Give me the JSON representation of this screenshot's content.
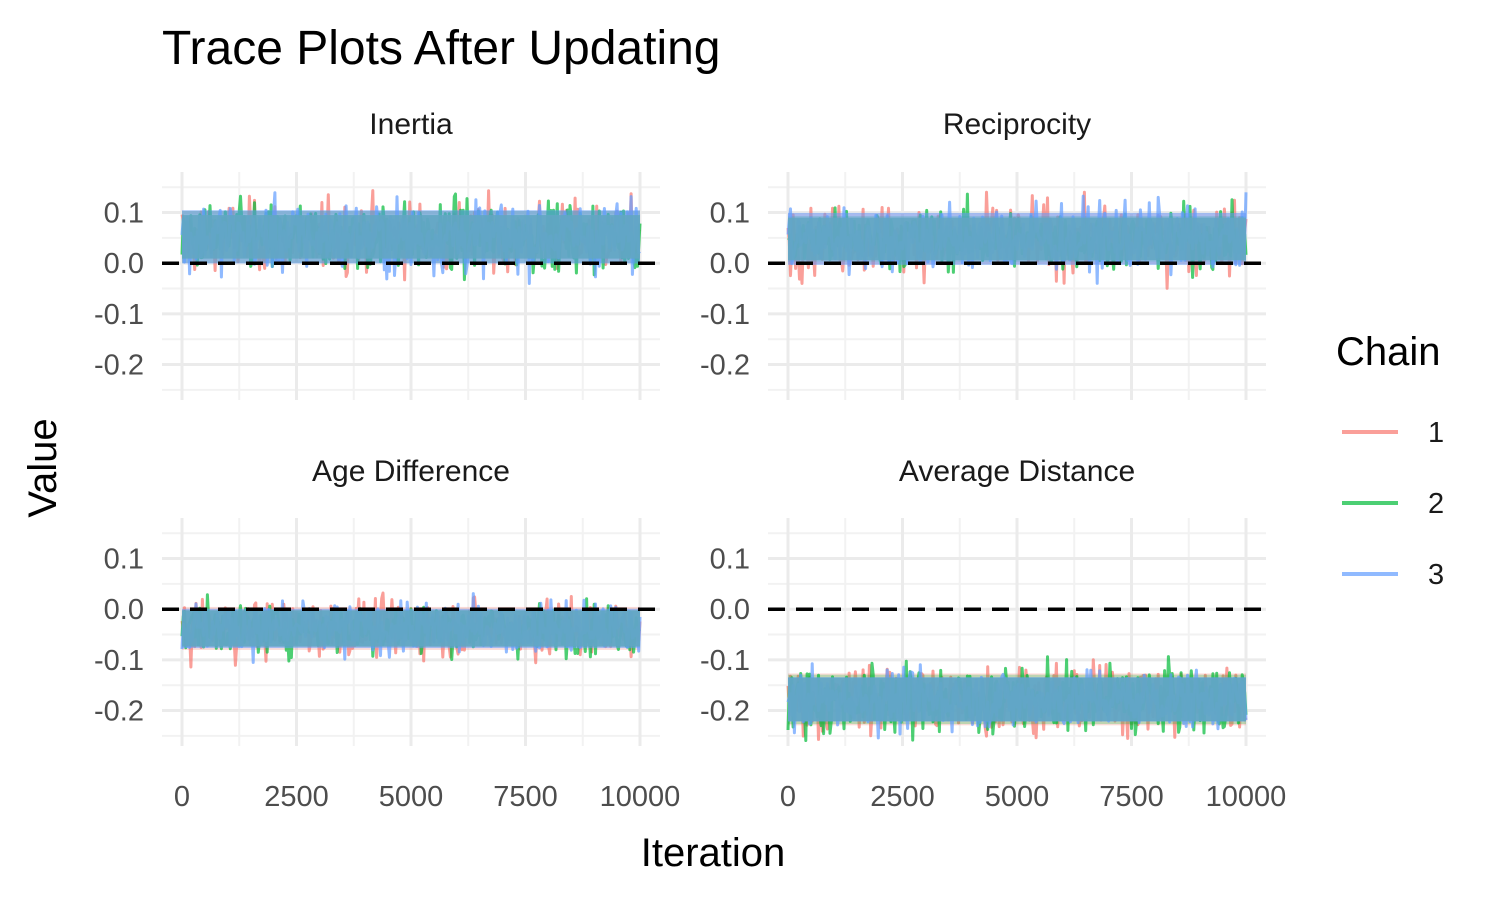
{
  "chart_data": {
    "type": "line",
    "title": "Trace Plots After Updating",
    "xlabel": "Iteration",
    "ylabel": "Value",
    "xlim": [
      0,
      10000
    ],
    "ylim": [
      -0.27,
      0.18
    ],
    "x_ticks": [
      0,
      2500,
      5000,
      7500,
      10000
    ],
    "x_tick_labels": [
      "0",
      "2500",
      "5000",
      "7500",
      "10000"
    ],
    "y_ticks": [
      0.1,
      0.0,
      -0.1,
      -0.2
    ],
    "y_tick_labels": [
      "0.1",
      "0.0",
      "-0.1",
      "-0.2"
    ],
    "reference_line": {
      "y": 0,
      "style": "dashed",
      "color": "#000000"
    },
    "grid": true,
    "legend": {
      "title": "Chain",
      "placement": "right",
      "entries": [
        {
          "name": "1",
          "color": "#F8766D"
        },
        {
          "name": "2",
          "color": "#00BA38"
        },
        {
          "name": "3",
          "color": "#619CFF"
        }
      ]
    },
    "panels": [
      {
        "title": "Inertia",
        "series": [
          {
            "name": "1",
            "color": "#F8766D",
            "mean": 0.052,
            "min": -0.05,
            "max": 0.155
          },
          {
            "name": "2",
            "color": "#00BA38",
            "mean": 0.052,
            "min": -0.055,
            "max": 0.15
          },
          {
            "name": "3",
            "color": "#619CFF",
            "mean": 0.052,
            "min": -0.04,
            "max": 0.17
          }
        ]
      },
      {
        "title": "Reciprocity",
        "series": [
          {
            "name": "1",
            "color": "#F8766D",
            "mean": 0.048,
            "min": -0.06,
            "max": 0.14
          },
          {
            "name": "2",
            "color": "#00BA38",
            "mean": 0.048,
            "min": -0.035,
            "max": 0.145
          },
          {
            "name": "3",
            "color": "#619CFF",
            "mean": 0.048,
            "min": -0.065,
            "max": 0.14
          }
        ]
      },
      {
        "title": "Age Difference",
        "series": [
          {
            "name": "1",
            "color": "#F8766D",
            "mean": -0.038,
            "min": -0.125,
            "max": 0.045
          },
          {
            "name": "2",
            "color": "#00BA38",
            "mean": -0.038,
            "min": -0.11,
            "max": 0.035
          },
          {
            "name": "3",
            "color": "#619CFF",
            "mean": -0.038,
            "min": -0.105,
            "max": 0.05
          }
        ]
      },
      {
        "title": "Average Distance",
        "series": [
          {
            "name": "1",
            "color": "#F8766D",
            "mean": -0.178,
            "min": -0.28,
            "max": -0.075
          },
          {
            "name": "2",
            "color": "#00BA38",
            "mean": -0.178,
            "min": -0.265,
            "max": -0.07
          },
          {
            "name": "3",
            "color": "#619CFF",
            "mean": -0.178,
            "min": -0.26,
            "max": -0.085
          }
        ]
      }
    ]
  }
}
